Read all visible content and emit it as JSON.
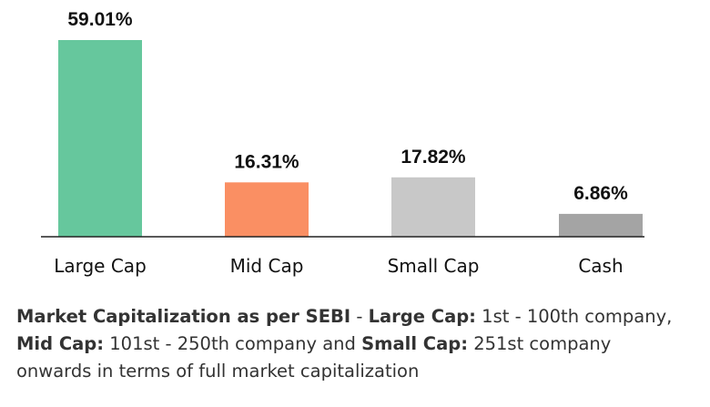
{
  "chart_data": {
    "type": "bar",
    "categories": [
      "Large Cap",
      "Mid Cap",
      "Small Cap",
      "Cash"
    ],
    "values": [
      59.01,
      16.31,
      17.82,
      6.86
    ],
    "value_labels": [
      "59.01%",
      "16.31%",
      "17.82%",
      "6.86%"
    ],
    "colors": [
      "#66c79d",
      "#fa8f63",
      "#c8c8c8",
      "#a4a4a4"
    ],
    "title": "",
    "xlabel": "",
    "ylabel": "",
    "ylim": [
      0,
      59.01
    ],
    "grid": false,
    "legend": "none"
  },
  "note": {
    "term1": "Market Capitalization as per SEBI",
    "sep1": " - ",
    "term2": "Large Cap:",
    "text2": " 1st - 100th company, ",
    "term3": "Mid Cap:",
    "text3": " 101st - 250th company and ",
    "term4": "Small Cap:",
    "text4": " 251st company onwards in terms of full market capitalization"
  }
}
